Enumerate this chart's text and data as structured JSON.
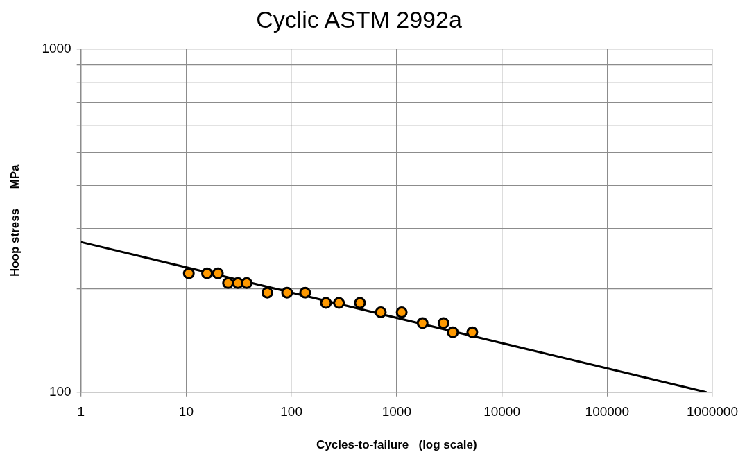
{
  "chart_data": {
    "type": "scatter",
    "title": "Cyclic ASTM 2992a",
    "xlabel": "Cycles-to-failure   (log scale)",
    "ylabel": "Hoop stress      MPa",
    "log": "xy",
    "grid": true,
    "legend": false,
    "marker": "circle",
    "xlim": [
      1,
      1000000
    ],
    "ylim": [
      100,
      1000
    ],
    "xticks": [
      1,
      10,
      100,
      1000,
      10000,
      100000,
      1000000
    ],
    "yticks": [
      100,
      {
        "value": 200,
        "label": null
      },
      {
        "value": 300,
        "label": null
      },
      {
        "value": 400,
        "label": null
      },
      {
        "value": 500,
        "label": null
      },
      {
        "value": 600,
        "label": null
      },
      {
        "value": 700,
        "label": null
      },
      {
        "value": 800,
        "label": null
      },
      {
        "value": 900,
        "label": null
      },
      1000
    ],
    "series": [
      {
        "type": "scatter",
        "color": "#ff9900",
        "x": [
          10.6,
          15.8,
          20,
          25,
          31,
          37.6,
          59,
          91,
          135,
          213,
          283,
          448,
          707,
          1117,
          1764,
          2788,
          3420,
          5236
        ],
        "values": [
          222,
          222,
          222,
          208,
          208,
          208,
          195,
          195,
          195,
          182,
          182,
          182,
          171,
          171,
          159,
          159,
          149.5,
          149.5
        ]
      },
      {
        "type": "line",
        "color": "#000000",
        "marker": "none",
        "line_style": "solid",
        "x": [
          1,
          880000
        ],
        "values": [
          274,
          100
        ]
      }
    ]
  }
}
